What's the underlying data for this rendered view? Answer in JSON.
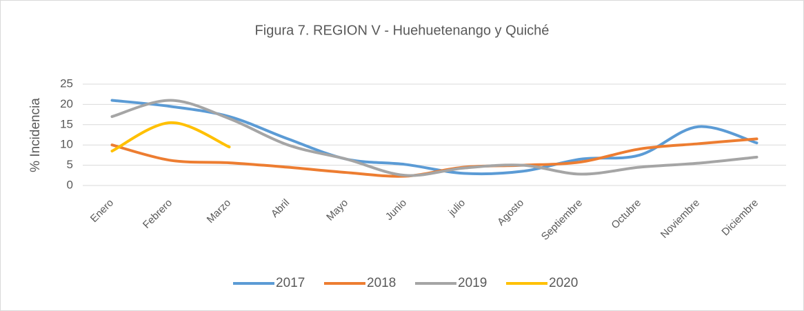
{
  "chart_data": {
    "type": "line",
    "title": "Figura 7.  REGION V - Huehuetenango y Quiché",
    "y_label": "% Incidencia",
    "categories": [
      "Enero",
      "Febrero",
      "Marzo",
      "Abril",
      "Mayo",
      "Junio",
      "julio",
      "Agosto",
      "Septiembre",
      "Octubre",
      "Noviembre",
      "Diciembre"
    ],
    "series": [
      {
        "name": "2017",
        "color": "#5b9bd5",
        "values": [
          21,
          19.5,
          17,
          11.5,
          6.5,
          5.2,
          3,
          3.5,
          6.5,
          7.5,
          14.5,
          10.5
        ]
      },
      {
        "name": "2018",
        "color": "#ed7d31",
        "values": [
          10,
          6.2,
          5.6,
          4.5,
          3.2,
          2.3,
          4.5,
          5,
          5.8,
          9,
          10.3,
          11.5
        ]
      },
      {
        "name": "2019",
        "color": "#a5a5a5",
        "values": [
          17,
          21,
          16.5,
          10,
          6.5,
          2.5,
          4.3,
          5,
          2.8,
          4.5,
          5.5,
          7
        ]
      },
      {
        "name": "2020",
        "color": "#ffc000",
        "values": [
          8.5,
          15.5,
          9.5,
          null,
          null,
          null,
          null,
          null,
          null,
          null,
          null,
          null
        ]
      }
    ],
    "ylim": [
      0,
      25
    ],
    "yticks": [
      0,
      5,
      10,
      15,
      20,
      25
    ],
    "grid": true,
    "smooth": true,
    "legend": "bottom"
  }
}
